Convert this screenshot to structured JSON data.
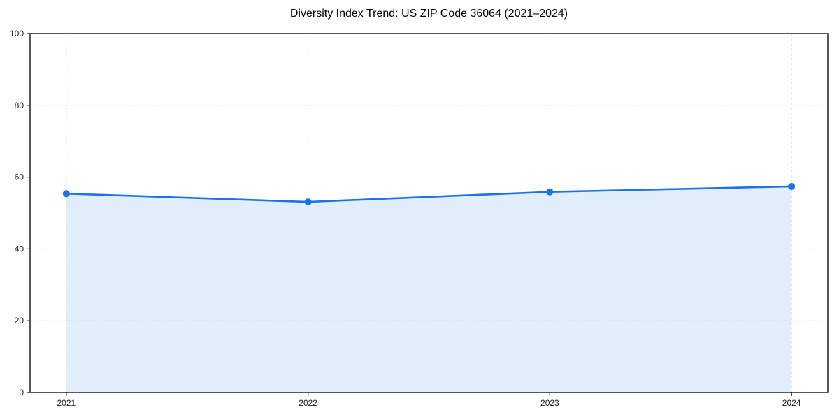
{
  "chart_data": {
    "type": "line",
    "title": "Diversity Index Trend: US ZIP Code 36064 (2021–2024)",
    "x": [
      2021,
      2022,
      2023,
      2024
    ],
    "series": [
      {
        "name": "Diversity Index",
        "values": [
          55.4,
          53.1,
          55.9,
          57.4
        ]
      }
    ],
    "xlabel": "",
    "ylabel": "",
    "xlim": [
      2020.85,
      2024.15
    ],
    "ylim": [
      0,
      100
    ],
    "xticks": [
      2021,
      2022,
      2023,
      2024
    ],
    "yticks": [
      0,
      20,
      40,
      60,
      80,
      100
    ],
    "grid": true,
    "grid_style": "dashed",
    "legend": "none",
    "marker": "circle",
    "area_fill": true,
    "colors": {
      "line": "#1a73e8",
      "fill_opacity": 0.12,
      "grid": "#dedede",
      "axis": "#111111",
      "text": "#1a1a1a",
      "background": "#ffffff"
    }
  }
}
